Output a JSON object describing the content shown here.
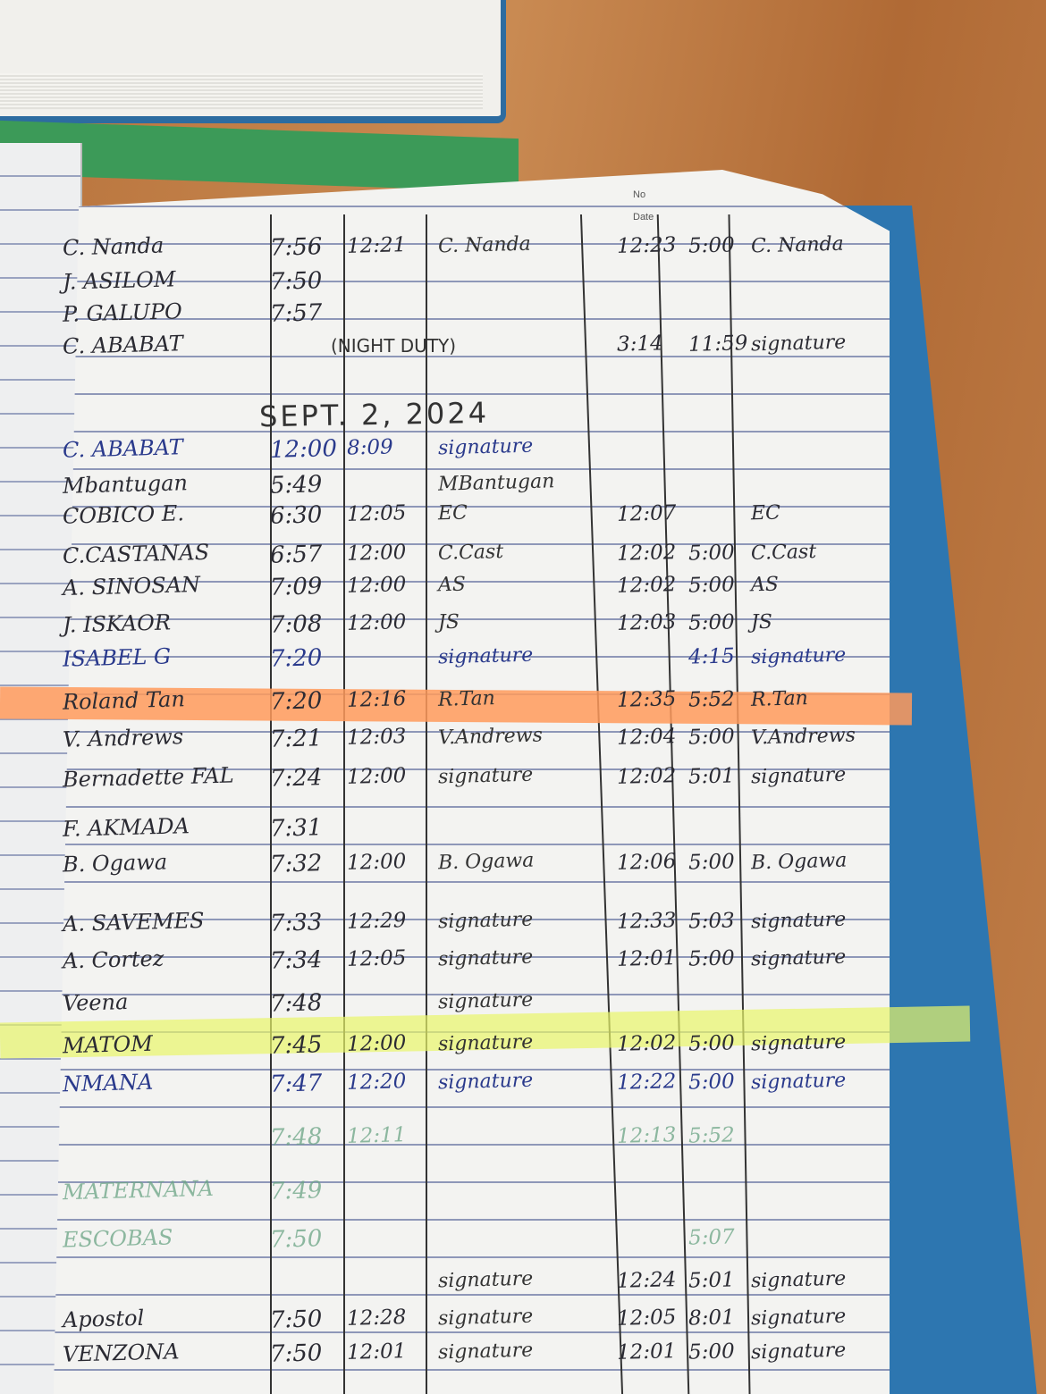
{
  "logbook": {
    "header": {
      "no_label": "No",
      "date_label": "Date"
    },
    "date_heading": "SEPT. 2, 2024",
    "night_duty_note": "(NIGHT DUTY)",
    "highlight_colors": {
      "orange": "#ff9a5c",
      "yellow": "#e8f56a"
    },
    "entries_before_date": [
      {
        "name": "C. Nanda",
        "am_in": "7:56",
        "am_out": "12:21",
        "signature": "C. Nanda",
        "pm_in": "12:23",
        "pm_out": "5:00",
        "signature_pm": "C. Nanda"
      },
      {
        "name": "J. ASILOM",
        "am_in": "7:50"
      },
      {
        "name": "P. GALUPO",
        "am_in": "7:57"
      },
      {
        "name": "C. ABABAT",
        "pm_in": "3:14",
        "pm_out": "11:59",
        "signature_pm": "signature"
      }
    ],
    "entries": [
      {
        "name": "C. ABABAT",
        "am_in": "12:00",
        "am_out": "8:09",
        "signature": "signature",
        "ink": "blue"
      },
      {
        "name": "Mbantugan",
        "am_in": "5:49",
        "signature": "MBantugan"
      },
      {
        "name": "COBICO E.",
        "am_in": "6:30",
        "am_out": "12:05",
        "signature": "EC",
        "pm_in": "12:07",
        "signature_pm": "EC"
      },
      {
        "name": "C.CASTANAS",
        "am_in": "6:57",
        "am_out": "12:00",
        "signature": "C.Cast",
        "pm_in": "12:02",
        "pm_out": "5:00",
        "signature_pm": "C.Cast"
      },
      {
        "name": "A. SINOSAN",
        "am_in": "7:09",
        "am_out": "12:00",
        "signature": "AS",
        "pm_in": "12:02",
        "pm_out": "5:00",
        "signature_pm": "AS"
      },
      {
        "name": "J. ISKAOR",
        "am_in": "7:08",
        "am_out": "12:00",
        "signature": "JS",
        "pm_in": "12:03",
        "pm_out": "5:00",
        "signature_pm": "JS"
      },
      {
        "name": "ISABEL G",
        "am_in": "7:20",
        "signature": "signature",
        "pm_out": "4:15",
        "signature_pm": "signature",
        "ink": "blue"
      },
      {
        "name": "Roland Tan",
        "am_in": "7:20",
        "am_out": "12:16",
        "signature": "R.Tan",
        "pm_in": "12:35",
        "pm_out": "5:52",
        "signature_pm": "R.Tan",
        "highlight": "orange"
      },
      {
        "name": "V. Andrews",
        "am_in": "7:21",
        "am_out": "12:03",
        "signature": "V.Andrews",
        "pm_in": "12:04",
        "pm_out": "5:00",
        "signature_pm": "V.Andrews"
      },
      {
        "name": "Bernadette FAL",
        "am_in": "7:24",
        "am_out": "12:00",
        "signature": "signature",
        "pm_in": "12:02",
        "pm_out": "5:01",
        "signature_pm": "signature"
      },
      {
        "name": "F. AKMADA",
        "am_in": "7:31"
      },
      {
        "name": "B. Ogawa",
        "am_in": "7:32",
        "am_out": "12:00",
        "signature": "B. Ogawa",
        "pm_in": "12:06",
        "pm_out": "5:00",
        "signature_pm": "B. Ogawa"
      },
      {
        "name": "A. SAVEMES",
        "am_in": "7:33",
        "am_out": "12:29",
        "signature": "signature",
        "pm_in": "12:33",
        "pm_out": "5:03",
        "signature_pm": "signature"
      },
      {
        "name": "A. Cortez",
        "am_in": "7:34",
        "am_out": "12:05",
        "signature": "signature",
        "pm_in": "12:01",
        "pm_out": "5:00",
        "signature_pm": "signature"
      },
      {
        "name": "Veena",
        "am_in": "7:48",
        "signature": "signature"
      },
      {
        "name": "MATOM",
        "am_in": "7:45",
        "am_out": "12:00",
        "signature": "signature",
        "pm_in": "12:02",
        "pm_out": "5:00",
        "signature_pm": "signature",
        "highlight": "yellow"
      },
      {
        "name": "NMANA",
        "am_in": "7:47",
        "am_out": "12:20",
        "signature": "signature",
        "pm_in": "12:22",
        "pm_out": "5:00",
        "signature_pm": "signature",
        "ink": "blue"
      },
      {
        "name": "",
        "am_in": "7:48",
        "am_out": "12:11",
        "pm_in": "12:13",
        "pm_out": "5:52",
        "ink": "green"
      },
      {
        "name": "MATERNANA",
        "am_in": "7:49",
        "ink": "green"
      },
      {
        "name": "ESCOBAS",
        "am_in": "7:50",
        "pm_out": "5:07",
        "ink": "green"
      },
      {
        "name": "",
        "am_in": "",
        "signature": "signature",
        "pm_in": "12:24",
        "pm_out": "5:01",
        "signature_pm": "signature"
      },
      {
        "name": "Apostol",
        "am_in": "7:50",
        "am_out": "12:28",
        "signature": "signature",
        "pm_in": "12:05",
        "pm_out": "8:01",
        "signature_pm": "signature"
      },
      {
        "name": "VENZONA",
        "am_in": "7:50",
        "am_out": "12:01",
        "signature": "signature",
        "pm_in": "12:01",
        "pm_out": "5:00",
        "signature_pm": "signature"
      }
    ]
  }
}
